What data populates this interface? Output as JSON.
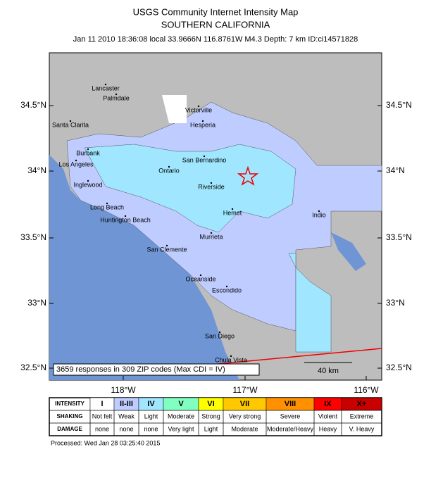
{
  "header": {
    "title": "USGS Community Internet Intensity Map",
    "region": "SOUTHERN CALIFORNIA",
    "event": "Jan 11 2010 18:36:08 local 33.9666N 116.8761W M4.3 Depth: 7 km ID:ci14571828"
  },
  "map": {
    "lat_labels": [
      "34.5°N",
      "34°N",
      "33.5°N",
      "33°N",
      "32.5°N"
    ],
    "lon_labels": [
      "118°W",
      "117°W",
      "116°W"
    ],
    "cities": [
      "Lancaster",
      "Palmdale",
      "Santa Clarita",
      "Victorville",
      "Hesperia",
      "Burbank",
      "Los Angeles",
      "San Bernardino",
      "Ontario",
      "Inglewood",
      "Riverside",
      "Long Beach",
      "Huntington Beach",
      "Hemet",
      "Indio",
      "Murrieta",
      "San Clemente",
      "Oceanside",
      "Escondido",
      "San Diego",
      "Chula Vista"
    ],
    "responses": "3659 responses in 309 ZIP codes (Max CDI = IV)",
    "scale": "40 km"
  },
  "legend": {
    "rows": [
      [
        "INTENSITY",
        "I",
        "II-III",
        "IV",
        "V",
        "VI",
        "VII",
        "VIII",
        "IX",
        "X+"
      ],
      [
        "SHAKING",
        "Not felt",
        "Weak",
        "Light",
        "Moderate",
        "Strong",
        "Very strong",
        "Severe",
        "Violent",
        "Extreme"
      ],
      [
        "DAMAGE",
        "none",
        "none",
        "none",
        "Very light",
        "Light",
        "Moderate",
        "Moderate/Heavy",
        "Heavy",
        "V. Heavy"
      ]
    ],
    "colors": [
      "#ffffff",
      "#bfccff",
      "#a0e6ff",
      "#80ffc0",
      "#ffff00",
      "#ffc800",
      "#ff9100",
      "#ff0000",
      "#c80000"
    ]
  },
  "footer": "Processed: Wed Jan 28 03:25:40 2015"
}
